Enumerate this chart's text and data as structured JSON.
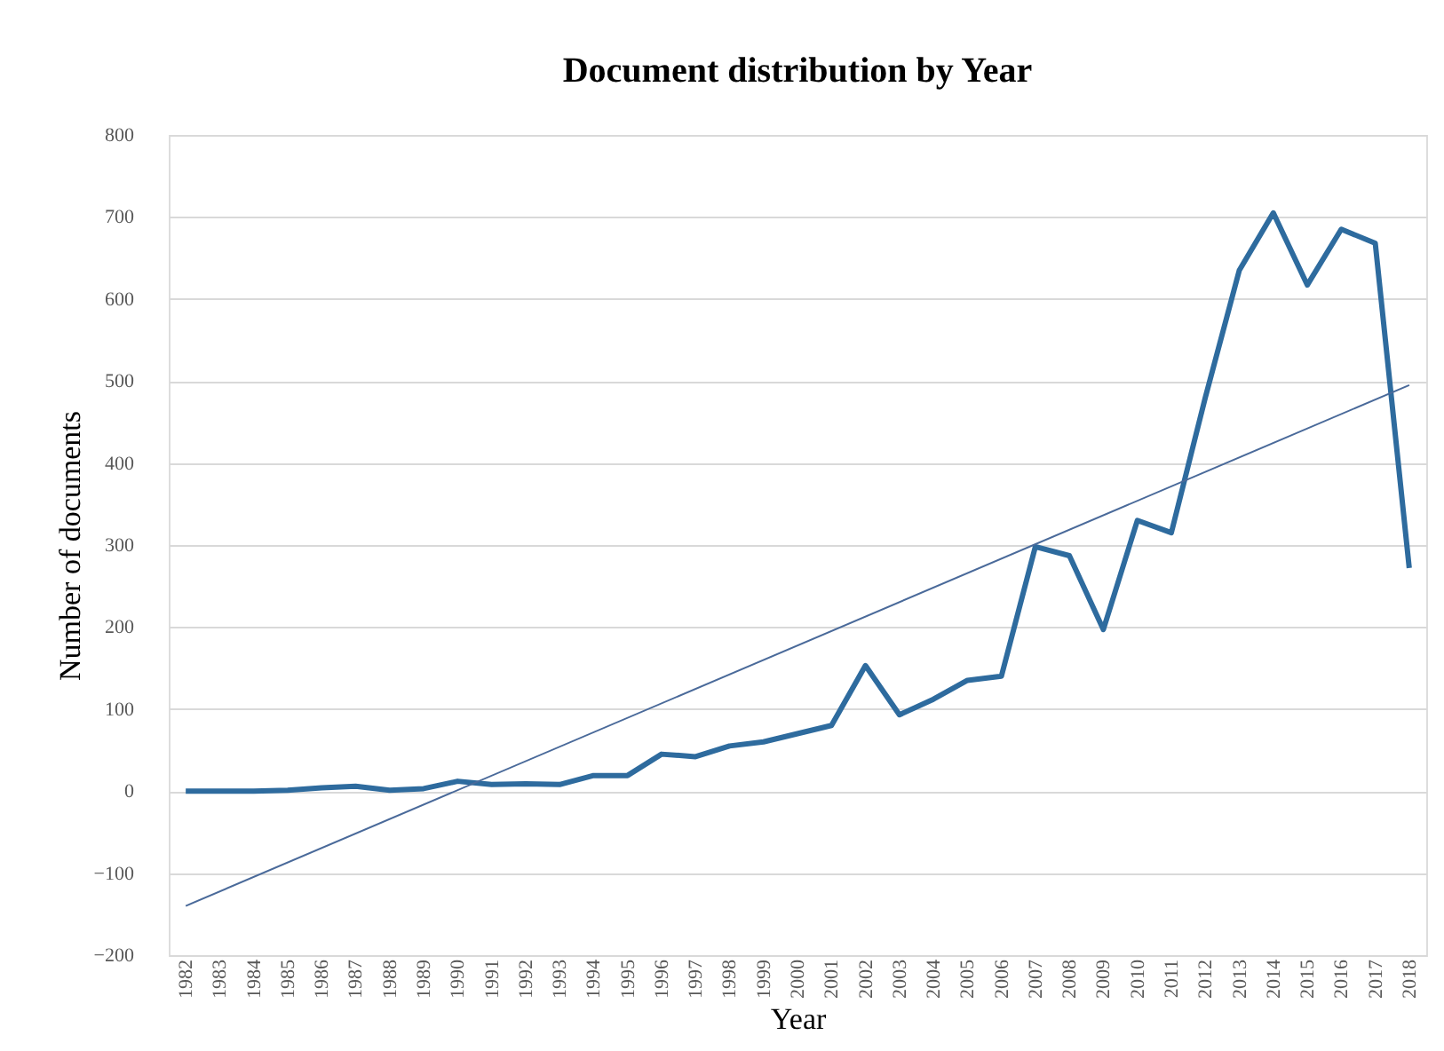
{
  "chart_data": {
    "type": "line",
    "title": "Document distribution by Year",
    "xlabel": "Year",
    "ylabel": "Number of documents",
    "categories": [
      "1982",
      "1983",
      "1984",
      "1985",
      "1986",
      "1987",
      "1988",
      "1989",
      "1990",
      "1991",
      "1992",
      "1993",
      "1994",
      "1995",
      "1996",
      "1997",
      "1998",
      "1999",
      "2000",
      "2001",
      "2002",
      "2003",
      "2004",
      "2005",
      "2006",
      "2007",
      "2008",
      "2009",
      "2010",
      "2011",
      "2012",
      "2013",
      "2014",
      "2015",
      "2016",
      "2017",
      "2018"
    ],
    "series": [
      {
        "color": "#2e6b9e",
        "values": [
          0,
          0,
          0,
          1,
          4,
          6,
          1,
          3,
          12,
          8,
          9,
          8,
          19,
          19,
          45,
          42,
          55,
          60,
          70,
          80,
          153,
          93,
          112,
          135,
          140,
          298,
          287,
          197,
          330,
          315,
          480,
          635,
          705,
          617,
          685,
          668,
          272
        ]
      },
      {
        "type": "line",
        "color": "#4a6a9a",
        "values": [
          -140,
          null,
          null,
          null,
          null,
          null,
          null,
          null,
          null,
          null,
          null,
          null,
          null,
          null,
          null,
          null,
          null,
          null,
          null,
          null,
          null,
          null,
          null,
          null,
          null,
          null,
          null,
          null,
          null,
          null,
          null,
          null,
          null,
          null,
          null,
          null,
          495
        ]
      }
    ],
    "ylim": [
      -200,
      800
    ],
    "yticks": [
      -200,
      -100,
      0,
      100,
      200,
      300,
      400,
      500,
      600,
      700,
      800
    ],
    "grid": "y",
    "marker": "none",
    "line_style": "solid"
  }
}
